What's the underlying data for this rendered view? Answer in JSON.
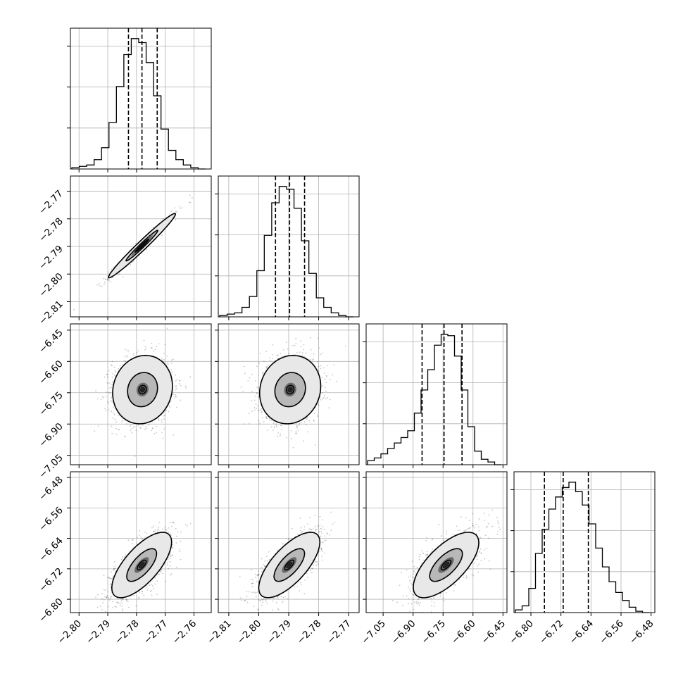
{
  "chart_data": {
    "type": "corner",
    "grid": true,
    "parameters": [
      {
        "xlim": [
          -2.803,
          -2.754
        ],
        "ticks": [
          -2.8,
          -2.79,
          -2.78,
          -2.77,
          -2.76
        ],
        "tick_labels": [
          "−2.80",
          "−2.79",
          "−2.78",
          "−2.77",
          "−2.76"
        ],
        "quantiles": [
          -2.7828,
          -2.7781,
          -2.7728
        ],
        "hist_counts": [
          1,
          2,
          3,
          7,
          16,
          35,
          62,
          86,
          98,
          95,
          80,
          55,
          30,
          14,
          7,
          3,
          1,
          0
        ]
      },
      {
        "xlim": [
          -2.8135,
          -2.7665
        ],
        "ticks": [
          -2.81,
          -2.8,
          -2.79,
          -2.78,
          -2.77
        ],
        "tick_labels": [
          "−2.81",
          "−2.80",
          "−2.79",
          "−2.78",
          "−2.77"
        ],
        "quantiles": [
          -2.7944,
          -2.7897,
          -2.7847
        ],
        "hist_counts": [
          1,
          2,
          3,
          7,
          15,
          34,
          60,
          84,
          96,
          94,
          80,
          56,
          32,
          14,
          7,
          3,
          1,
          0
        ]
      },
      {
        "xlim": [
          -7.135,
          -6.43
        ],
        "ticks": [
          -7.05,
          -6.9,
          -6.75,
          -6.6,
          -6.45
        ],
        "tick_labels": [
          "−7.05",
          "−6.90",
          "−6.75",
          "−6.60",
          "−6.45"
        ],
        "quantiles": [
          -6.855,
          -6.745,
          -6.655
        ],
        "hist_counts": [
          3,
          5,
          8,
          12,
          16,
          20,
          25,
          38,
          55,
          70,
          88,
          96,
          95,
          80,
          55,
          28,
          10,
          4,
          2,
          0
        ]
      },
      {
        "xlim": [
          -6.845,
          -6.47
        ],
        "ticks": [
          -6.8,
          -6.72,
          -6.64,
          -6.56,
          -6.48
        ],
        "tick_labels": [
          "−6.80",
          "−6.72",
          "−6.64",
          "−6.56",
          "−6.48"
        ],
        "quantiles": [
          -6.764,
          -6.714,
          -6.647
        ],
        "hist_counts": [
          2,
          5,
          18,
          44,
          62,
          77,
          86,
          93,
          97,
          90,
          80,
          66,
          48,
          34,
          23,
          15,
          9,
          4,
          1,
          0
        ]
      }
    ],
    "pairs": [
      {
        "row": 1,
        "col": 0,
        "kind": "narrow",
        "mean": [
          -2.7781,
          -2.7897
        ],
        "sd_major": 0.0082,
        "sd_minor": 0.0008,
        "levels": [
          0.4,
          0.95,
          2.0
        ]
      },
      {
        "row": 2,
        "col": 0,
        "mean": [
          -2.7779,
          -6.735
        ],
        "sd": [
          0.0052,
          0.082
        ],
        "rho": 0.1,
        "levels": [
          0.25,
          1.0,
          2.0
        ]
      },
      {
        "row": 2,
        "col": 1,
        "mean": [
          -2.7895,
          -6.735
        ],
        "sd": [
          0.0051,
          0.082
        ],
        "rho": 0.1,
        "levels": [
          0.25,
          1.0,
          2.0
        ]
      },
      {
        "row": 3,
        "col": 0,
        "mean": [
          -2.7782,
          -6.71
        ],
        "sd": [
          0.0052,
          0.043
        ],
        "rho": 0.7,
        "levels": [
          0.3,
          1.0,
          2.0
        ]
      },
      {
        "row": 3,
        "col": 1,
        "mean": [
          -2.7898,
          -6.71
        ],
        "sd": [
          0.0051,
          0.043
        ],
        "rho": 0.7,
        "levels": [
          0.3,
          1.0,
          2.0
        ]
      },
      {
        "row": 3,
        "col": 2,
        "mean": [
          -6.735,
          -6.71
        ],
        "sd": [
          0.082,
          0.043
        ],
        "rho": 0.68,
        "levels": [
          0.3,
          1.0,
          2.0
        ]
      }
    ],
    "y_axes": [
      {
        "row": 1,
        "ylim": [
          -2.8155,
          -2.7645
        ],
        "ticks": [
          -2.77,
          -2.78,
          -2.79,
          -2.8,
          -2.81
        ],
        "tick_labels": [
          "−2.77",
          "−2.78",
          "−2.79",
          "−2.80",
          "−2.81"
        ]
      },
      {
        "row": 2,
        "ylim": [
          -7.095,
          -6.42
        ],
        "ticks": [
          -6.45,
          -6.6,
          -6.75,
          -6.9,
          -7.05
        ],
        "tick_labels": [
          "−6.45",
          "−6.60",
          "−6.75",
          "−6.90",
          "−7.05"
        ]
      },
      {
        "row": 3,
        "ylim": [
          -6.835,
          -6.465
        ],
        "ticks": [
          -6.48,
          -6.56,
          -6.64,
          -6.72,
          -6.8
        ],
        "tick_labels": [
          "−6.48",
          "−6.56",
          "−6.64",
          "−6.72",
          "−6.80"
        ]
      }
    ]
  }
}
